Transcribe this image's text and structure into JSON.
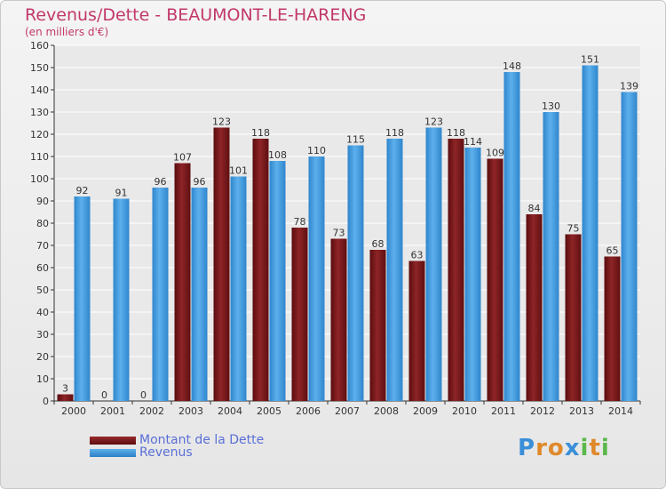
{
  "title": "Revenus/Dette - BEAUMONT-LE-HARENG",
  "subtitle": "(en milliers d'€)",
  "colors": {
    "dette": "#7a1518",
    "revenus": "#3c95d9",
    "title": "#c2386a",
    "legend_text": "#5a6fd6"
  },
  "legend": {
    "dette_label": "Montant de la Dette",
    "revenus_label": "Revenus"
  },
  "logo": {
    "text": "Proxiti",
    "letters": [
      "P",
      "r",
      "o",
      "x",
      "i",
      "t",
      "i"
    ],
    "letter_colors": [
      "#3a8fd8",
      "#e0892a",
      "#e0892a",
      "#3a8fd8",
      "#5bb84b",
      "#e0892a",
      "#5bb84b"
    ]
  },
  "chart_data": {
    "type": "bar",
    "categories": [
      "2000",
      "2001",
      "2002",
      "2003",
      "2004",
      "2005",
      "2006",
      "2007",
      "2008",
      "2009",
      "2010",
      "2011",
      "2012",
      "2013",
      "2014"
    ],
    "series": [
      {
        "name": "Montant de la Dette",
        "values": [
          3,
          0,
          0,
          107,
          123,
          118,
          78,
          73,
          68,
          63,
          118,
          109,
          84,
          75,
          65
        ]
      },
      {
        "name": "Revenus",
        "values": [
          92,
          91,
          96,
          96,
          101,
          108,
          110,
          115,
          118,
          123,
          114,
          148,
          130,
          151,
          139
        ]
      }
    ],
    "ylim": [
      0,
      160
    ],
    "yticks": [
      0,
      10,
      20,
      30,
      40,
      50,
      60,
      70,
      80,
      90,
      100,
      110,
      120,
      130,
      140,
      150,
      160
    ],
    "grid": true,
    "legend_position": "bottom-left"
  }
}
